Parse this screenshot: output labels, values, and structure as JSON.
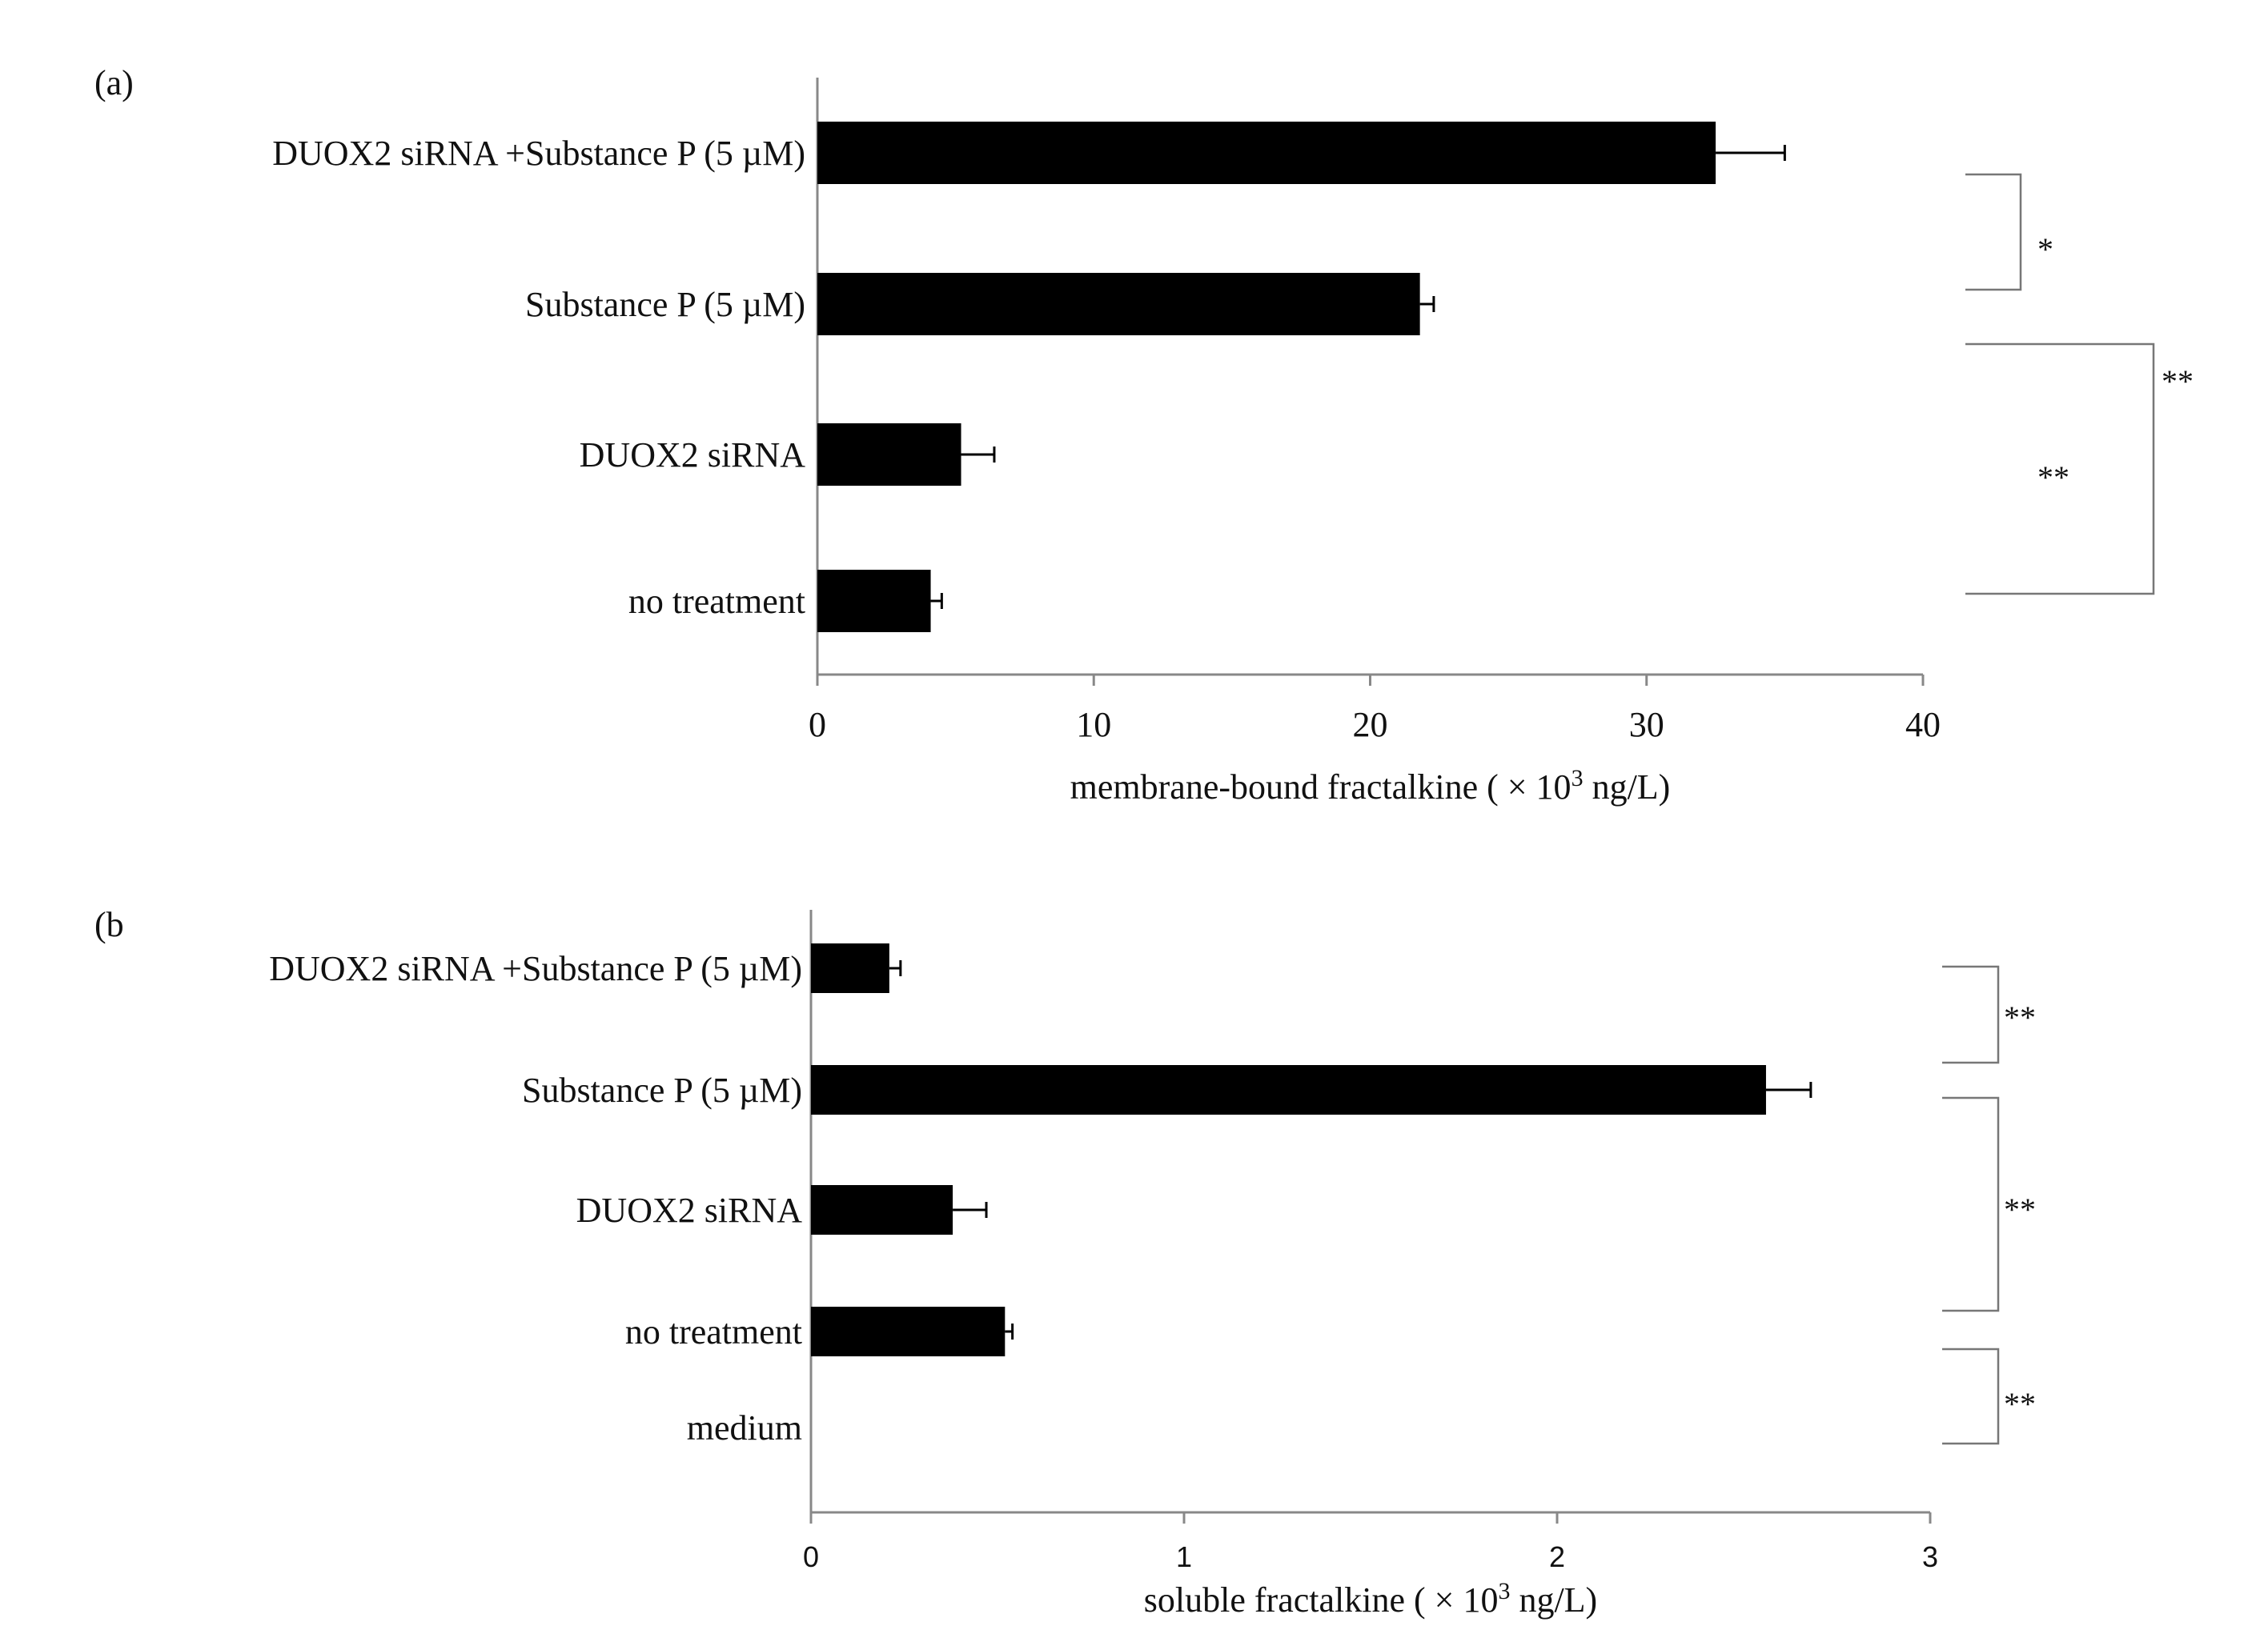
{
  "chart_data": [
    {
      "panel_label": "(a)",
      "type": "bar",
      "orientation": "horizontal",
      "categories": [
        "DUOX2 siRNA +Substance P (5 µM)",
        "Substance P (5 µM)",
        "DUOX2 siRNA",
        "no treatment"
      ],
      "values": [
        32.5,
        21.8,
        5.2,
        4.1
      ],
      "errors": [
        2.5,
        0.5,
        1.2,
        0.4
      ],
      "xlabel": "membrane-bound fractalkine ( × 10",
      "xlabel_sup": "3",
      "xlabel_tail": " ng/L)",
      "xlim": [
        0,
        40
      ],
      "xticks": [
        0,
        10,
        20,
        30,
        40
      ],
      "bar_color": "#000000",
      "significance": [
        {
          "from": 0,
          "to": 1,
          "label": "*"
        },
        {
          "from": 1,
          "to": 3,
          "label": "**"
        },
        {
          "from": 0,
          "to": 3,
          "label": "**"
        }
      ]
    },
    {
      "panel_label": "(b",
      "type": "bar",
      "orientation": "horizontal",
      "categories": [
        "DUOX2 siRNA +Substance P (5 µM)",
        "Substance P (5 µM)",
        "DUOX2 siRNA",
        "no treatment",
        "medium"
      ],
      "values": [
        0.21,
        2.56,
        0.38,
        0.52,
        0
      ],
      "errors": [
        0.03,
        0.12,
        0.09,
        0.02,
        0
      ],
      "xlabel": "soluble fractalkine ( × 10",
      "xlabel_sup": "3",
      "xlabel_tail": " ng/L)",
      "xlim": [
        0,
        3
      ],
      "xticks": [
        0,
        1,
        2,
        3
      ],
      "bar_color": "#000000",
      "significance": [
        {
          "from": 0,
          "to": 1,
          "label": "**"
        },
        {
          "from": 1,
          "to": 3,
          "label": "**"
        },
        {
          "from": 3,
          "to": 4,
          "label": "**"
        }
      ]
    }
  ]
}
